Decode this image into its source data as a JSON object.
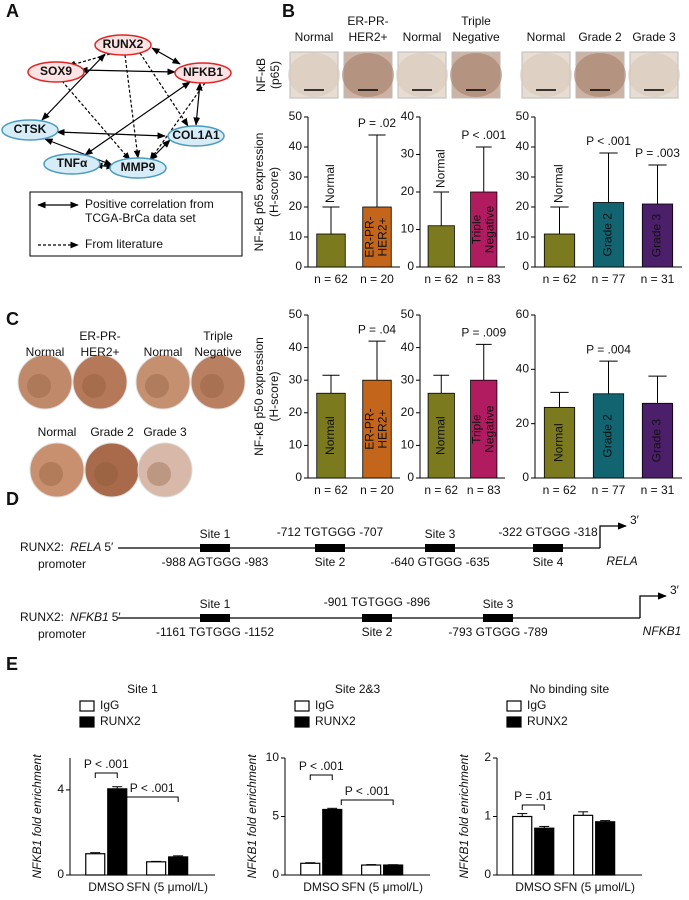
{
  "panel_labels": [
    "A",
    "B",
    "C",
    "D",
    "E"
  ],
  "network": {
    "nodes": [
      "RUNX2",
      "SOX9",
      "NFKB1",
      "CTSK",
      "COL1A1",
      "TNFα",
      "MMP9"
    ],
    "legend": [
      [
        "Positive correlation from",
        "TCGA-BrCa data set"
      ],
      [
        "From literature"
      ]
    ]
  },
  "images": {
    "b_label": [
      "NF-κB",
      "(p65)"
    ],
    "b_groups": [
      [
        "Normal"
      ],
      [
        "ER-PR-",
        "HER2+"
      ],
      [
        "Normal"
      ],
      [
        "Triple",
        "Negative"
      ],
      [
        "Normal"
      ],
      [
        "Grade 2"
      ],
      [
        "Grade 3"
      ]
    ],
    "c_groups": [
      [
        "Normal"
      ],
      [
        "ER-PR-",
        "HER2+"
      ],
      [
        "Normal"
      ],
      [
        "Triple",
        "Negative"
      ],
      [
        "Normal"
      ],
      [
        "Grade 2"
      ],
      [
        "Grade 3"
      ]
    ]
  },
  "promoters": [
    {
      "name": "RUNX2:",
      "gene": "RELA",
      "end5": "5′",
      "note": "promoter",
      "end3": "3′",
      "sites": [
        {
          "name": "Site 1",
          "sequence": "-988 AGTGGG -983"
        },
        {
          "name": "Site 2",
          "sequence": "-712 TGTGGG -707"
        },
        {
          "name": "Site 3",
          "sequence": "-640 GTGGG -635"
        },
        {
          "name": "Site 4",
          "sequence": "-322 GTGGG -318"
        }
      ]
    },
    {
      "name": "RUNX2:",
      "gene": "NFKB1",
      "end5": "5′",
      "note": "promoter",
      "end3": "3′",
      "sites": [
        {
          "name": "Site 1",
          "sequence": "-1161 TGTGGG -1152"
        },
        {
          "name": "Site 2",
          "sequence": "-901 TGTGGG -896"
        },
        {
          "name": "Site 3",
          "sequence": "-793 GTGGG -789"
        }
      ]
    }
  ],
  "chart_data": [
    {
      "type": "bar",
      "ylabel": [
        "NF-κB p65 expression",
        "(H-score)"
      ],
      "categories": [
        [
          "Normal"
        ],
        [
          "ER-PR-",
          "HER2+"
        ]
      ],
      "values": [
        11,
        20
      ],
      "errors": [
        9,
        24
      ],
      "colors": [
        "#7b7a1e",
        "#c4651c"
      ],
      "n_labels": [
        "n = 62",
        "n = 20"
      ],
      "p_labels": [
        null,
        "P = .02"
      ],
      "ylim": [
        0,
        50
      ],
      "yticks": [
        0,
        10,
        20,
        30,
        40,
        50
      ]
    },
    {
      "type": "bar",
      "categories": [
        [
          "Normal"
        ],
        [
          "Triple",
          "Negative"
        ]
      ],
      "values": [
        11,
        20
      ],
      "errors": [
        9,
        12
      ],
      "colors": [
        "#7b7a1e",
        "#b01c5f"
      ],
      "n_labels": [
        "n = 62",
        "n = 83"
      ],
      "p_labels": [
        null,
        "P < .001"
      ],
      "ylim": [
        0,
        40
      ],
      "yticks": [
        0,
        10,
        20,
        30,
        40
      ]
    },
    {
      "type": "bar",
      "categories": [
        [
          "Normal"
        ],
        [
          "Grade 2"
        ],
        [
          "Grade 3"
        ]
      ],
      "values": [
        11,
        21.5,
        21
      ],
      "errors": [
        9,
        16.5,
        13
      ],
      "colors": [
        "#7b7a1e",
        "#136471",
        "#4c1f6b"
      ],
      "n_labels": [
        "n = 62",
        "n = 77",
        "n = 31"
      ],
      "p_labels": [
        null,
        "P < .001",
        "P = .003"
      ],
      "ylim": [
        0,
        50
      ],
      "yticks": [
        0,
        10,
        20,
        30,
        40,
        50
      ]
    },
    {
      "type": "bar",
      "ylabel": [
        "NF-κB p50 expression",
        "(H-score)"
      ],
      "categories": [
        [
          "Normal"
        ],
        [
          "ER-PR-",
          "HER2+"
        ]
      ],
      "values": [
        26,
        30
      ],
      "errors": [
        5.5,
        12
      ],
      "colors": [
        "#7b7a1e",
        "#c4651c"
      ],
      "n_labels": [
        "n = 62",
        "n = 20"
      ],
      "p_labels": [
        null,
        "P = .04"
      ],
      "ylim": [
        0,
        50
      ],
      "yticks": [
        0,
        10,
        20,
        30,
        40,
        50
      ]
    },
    {
      "type": "bar",
      "categories": [
        [
          "Normal"
        ],
        [
          "Triple",
          "Negative"
        ]
      ],
      "values": [
        26,
        30
      ],
      "errors": [
        5.5,
        11
      ],
      "colors": [
        "#7b7a1e",
        "#b01c5f"
      ],
      "n_labels": [
        "n = 62",
        "n = 83"
      ],
      "p_labels": [
        null,
        "P = .009"
      ],
      "ylim": [
        0,
        50
      ],
      "yticks": [
        0,
        10,
        20,
        30,
        40,
        50
      ]
    },
    {
      "type": "bar",
      "categories": [
        [
          "Normal"
        ],
        [
          "Grade 2"
        ],
        [
          "Grade 3"
        ]
      ],
      "values": [
        26,
        31,
        27.5
      ],
      "errors": [
        5.5,
        12,
        10
      ],
      "colors": [
        "#7b7a1e",
        "#136471",
        "#4c1f6b"
      ],
      "n_labels": [
        "n = 62",
        "n = 77",
        "n = 31"
      ],
      "p_labels": [
        null,
        "P = .004",
        null
      ],
      "ylim": [
        0,
        60
      ],
      "yticks": [
        0,
        20,
        40,
        60
      ]
    },
    {
      "type": "grouped_bar",
      "title": "Site 1",
      "ylabel": "NFKB1 fold enrichment",
      "categories": [
        "DMSO",
        "SFN (5 μmol/L)"
      ],
      "series": [
        {
          "name": "IgG",
          "color": "#ffffff",
          "values": [
            1.0,
            0.62
          ],
          "errors": [
            0.05,
            0.02
          ]
        },
        {
          "name": "RUNX2",
          "color": "#000000",
          "values": [
            4.05,
            0.85
          ],
          "errors": [
            0.1,
            0.05
          ]
        }
      ],
      "annotations": [
        "P < .001",
        "P < .001"
      ],
      "ylim": [
        0,
        5.5
      ],
      "yticks": [
        0,
        4
      ]
    },
    {
      "type": "grouped_bar",
      "title": "Site 2&3",
      "ylabel": "NFKB1 fold enrichment",
      "categories": [
        "DMSO",
        "SFN (5 μmol/L)"
      ],
      "series": [
        {
          "name": "IgG",
          "color": "#ffffff",
          "values": [
            1.0,
            0.85
          ],
          "errors": [
            0.05,
            0.04
          ]
        },
        {
          "name": "RUNX2",
          "color": "#000000",
          "values": [
            5.6,
            0.85
          ],
          "errors": [
            0.1,
            0.03
          ]
        }
      ],
      "annotations": [
        "P < .001",
        "P < .001"
      ],
      "ylim": [
        0,
        10
      ],
      "yticks": [
        0,
        5,
        10
      ]
    },
    {
      "type": "grouped_bar",
      "title": "No binding site",
      "ylabel": "NFKB1 fold enrichment",
      "categories": [
        "DMSO",
        "SFN (5 μmol/L)"
      ],
      "series": [
        {
          "name": "IgG",
          "color": "#ffffff",
          "values": [
            1.0,
            1.02
          ],
          "errors": [
            0.05,
            0.06
          ]
        },
        {
          "name": "RUNX2",
          "color": "#000000",
          "values": [
            0.8,
            0.91
          ],
          "errors": [
            0.03,
            0.02
          ]
        }
      ],
      "annotations": [
        "P = .01"
      ],
      "ylim": [
        0,
        2
      ],
      "yticks": [
        0,
        1,
        2
      ]
    }
  ]
}
